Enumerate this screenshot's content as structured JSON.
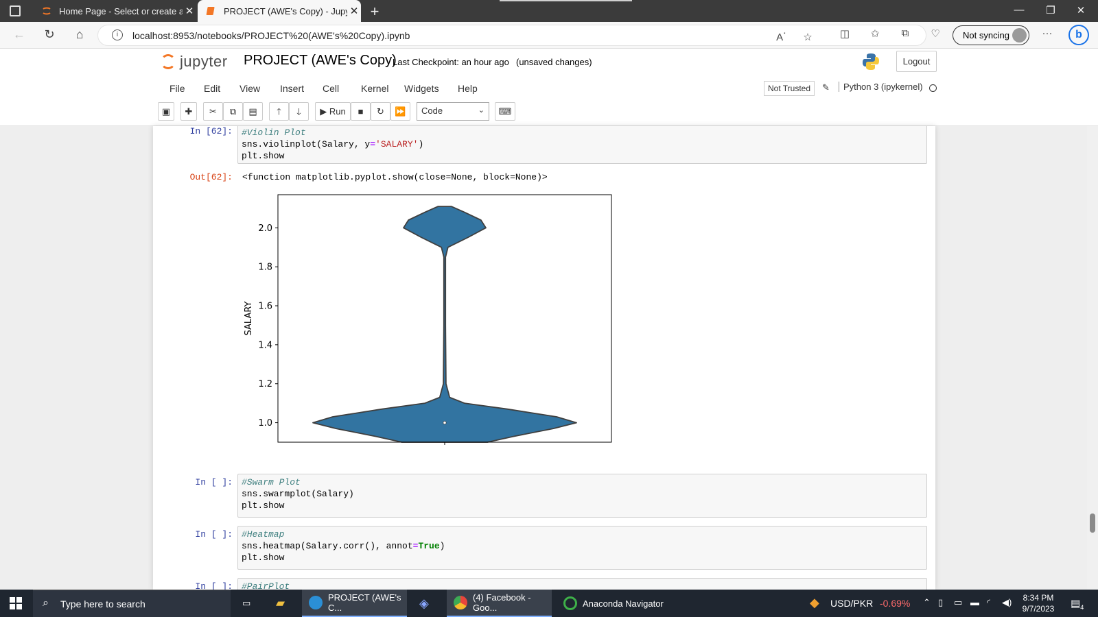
{
  "browser": {
    "tabs": [
      {
        "title": "Home Page - Select or create a n",
        "active": false
      },
      {
        "title": "PROJECT (AWE's Copy) - Jupyter",
        "active": true
      }
    ],
    "url": "localhost:8953/notebooks/PROJECT%20(AWE's%20Copy).ipynb",
    "sync_label": "Not syncing"
  },
  "jupyter": {
    "logo_text": "jupyter",
    "notebook_name": "PROJECT (AWE's Copy)",
    "checkpoint": "Last Checkpoint: an hour ago",
    "unsaved": "(unsaved changes)",
    "logout": "Logout",
    "menu": [
      "File",
      "Edit",
      "View",
      "Insert",
      "Cell",
      "Kernel",
      "Widgets",
      "Help"
    ],
    "trust": "Not Trusted",
    "kernel": "Python 3 (ipykernel)",
    "run_label": "Run",
    "cell_type": "Code"
  },
  "cells": [
    {
      "prompt": "In [62]:",
      "lines": [
        [
          {
            "t": "#Violin Plot",
            "c": "comment"
          }
        ],
        [
          {
            "t": "sns.violinplot(Salary, y",
            "c": ""
          },
          {
            "t": "=",
            "c": "op"
          },
          {
            "t": "'SALARY'",
            "c": "string"
          },
          {
            "t": ")",
            "c": ""
          }
        ],
        [
          {
            "t": "plt.show",
            "c": ""
          }
        ]
      ],
      "out_prompt": "Out[62]:",
      "out_text": "<function matplotlib.pyplot.show(close=None, block=None)>"
    },
    {
      "prompt": "In [ ]:",
      "lines": [
        [
          {
            "t": "#Swarm Plot",
            "c": "comment"
          }
        ],
        [
          {
            "t": "sns.swarmplot(Salary)",
            "c": ""
          }
        ],
        [
          {
            "t": "plt.show",
            "c": ""
          }
        ]
      ]
    },
    {
      "prompt": "In [ ]:",
      "lines": [
        [
          {
            "t": "#Heatmap",
            "c": "comment"
          }
        ],
        [
          {
            "t": "sns.heatmap(Salary.corr(), annot",
            "c": ""
          },
          {
            "t": "=",
            "c": "op"
          },
          {
            "t": "True",
            "c": "kw"
          },
          {
            "t": ")",
            "c": ""
          }
        ],
        [
          {
            "t": "plt.show",
            "c": ""
          }
        ]
      ]
    },
    {
      "prompt": "In [ ]:",
      "lines": [
        [
          {
            "t": "#PairPlot",
            "c": "comment"
          }
        ]
      ]
    }
  ],
  "chart_data": {
    "type": "violin",
    "ylabel": "SALARY",
    "yticks": [
      1.0,
      1.2,
      1.4,
      1.6,
      1.8,
      2.0
    ],
    "ylim": [
      0.9,
      2.17
    ],
    "fill_color": "#3274a1",
    "median": 1.0,
    "profile": [
      [
        0.9,
        0.26
      ],
      [
        0.93,
        0.42
      ],
      [
        0.97,
        0.66
      ],
      [
        1.0,
        0.8
      ],
      [
        1.03,
        0.68
      ],
      [
        1.07,
        0.38
      ],
      [
        1.1,
        0.12
      ],
      [
        1.13,
        0.03
      ],
      [
        1.2,
        0.008
      ],
      [
        1.5,
        0.005
      ],
      [
        1.85,
        0.005
      ],
      [
        1.9,
        0.02
      ],
      [
        1.95,
        0.14
      ],
      [
        2.0,
        0.25
      ],
      [
        2.04,
        0.22
      ],
      [
        2.08,
        0.12
      ],
      [
        2.11,
        0.04
      ],
      [
        2.11,
        0.0
      ]
    ]
  },
  "taskbar": {
    "search_placeholder": "Type here to search",
    "apps": [
      {
        "label": "PROJECT (AWE's C...",
        "color": "#2b8fd6",
        "active": true
      },
      {
        "label": "(4) Facebook - Goo...",
        "color": "#e8453c",
        "active": true
      },
      {
        "label": "Anaconda Navigator",
        "color": "#3eb049",
        "active": false
      }
    ],
    "ticker": "USD/PKR",
    "ticker_change": "-0.69%",
    "time": "8:34 PM",
    "date": "9/7/2023",
    "notif_count": "4"
  }
}
